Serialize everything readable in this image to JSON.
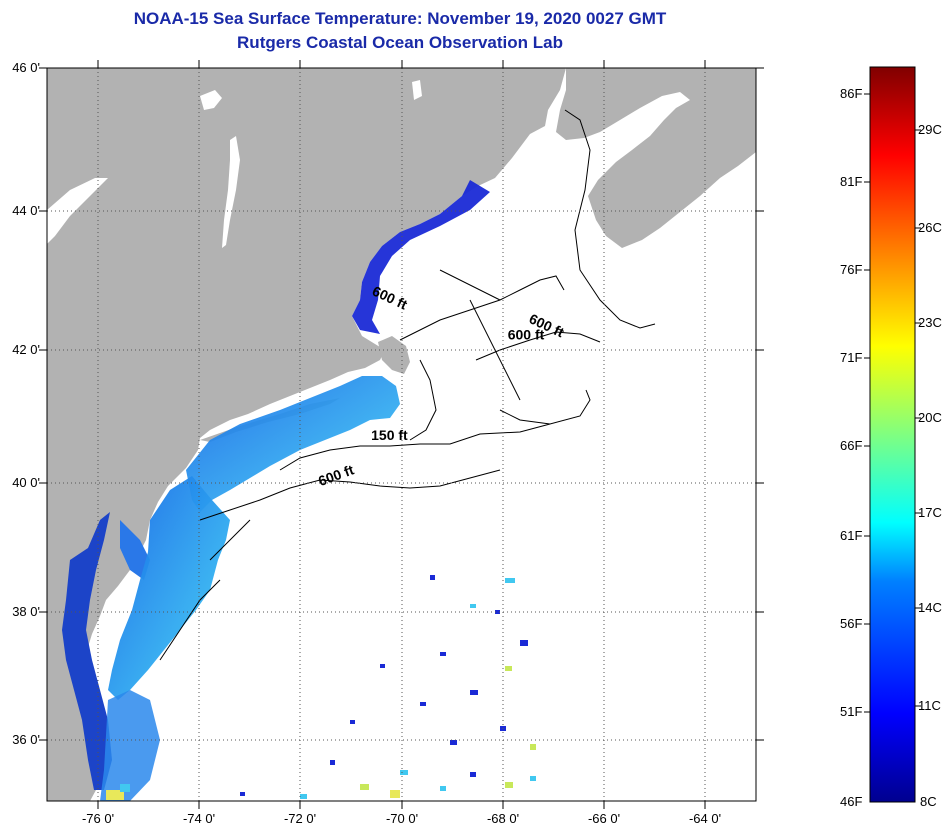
{
  "title": {
    "line1": "NOAA-15 Sea Surface Temperature:  November 19, 2020 0027 GMT",
    "line2": "Rutgers Coastal Ocean Observation Lab"
  },
  "map": {
    "latitude_labels": [
      {
        "value": 46,
        "text": "46 0'"
      },
      {
        "value": 44,
        "text": "44 0'"
      },
      {
        "value": 42,
        "text": "42 0'"
      },
      {
        "value": 40,
        "text": "40 0'"
      },
      {
        "value": 38,
        "text": "38 0'"
      },
      {
        "value": 36,
        "text": "36 0'"
      }
    ],
    "longitude_labels": [
      {
        "value": -76,
        "text": "-76 0'"
      },
      {
        "value": -74,
        "text": "-74 0'"
      },
      {
        "value": -72,
        "text": "-72 0'"
      },
      {
        "value": -70,
        "text": "-70 0'"
      },
      {
        "value": -68,
        "text": "-68 0'"
      },
      {
        "value": -66,
        "text": "-66 0'"
      },
      {
        "value": -64,
        "text": "-64 0'"
      }
    ],
    "lat_range": [
      35,
      46
    ],
    "lon_range": [
      -77,
      -63
    ],
    "depth_labels": [
      {
        "text": "600 ft",
        "lon": -70.6,
        "lat": 42.8
      },
      {
        "text": "600 ft",
        "lon": -67.5,
        "lat": 42.4
      },
      {
        "text": "600 ft",
        "lon": -67.9,
        "lat": 42.15
      },
      {
        "text": "150 ft",
        "lon": -70.6,
        "lat": 40.65
      },
      {
        "text": "600 ft",
        "lon": -71.6,
        "lat": 39.95
      }
    ],
    "colors": {
      "land": "#b2b2b2",
      "ocean": "#ffffff",
      "grid": "#555555"
    }
  },
  "colorbar": {
    "fahrenheit_labels": [
      "86F",
      "81F",
      "76F",
      "71F",
      "66F",
      "61F",
      "56F",
      "51F",
      "46F"
    ],
    "celsius_labels": [
      "29C",
      "26C",
      "23C",
      "20C",
      "17C",
      "14C",
      "11C",
      "8C"
    ],
    "range_f": [
      46,
      88
    ]
  }
}
